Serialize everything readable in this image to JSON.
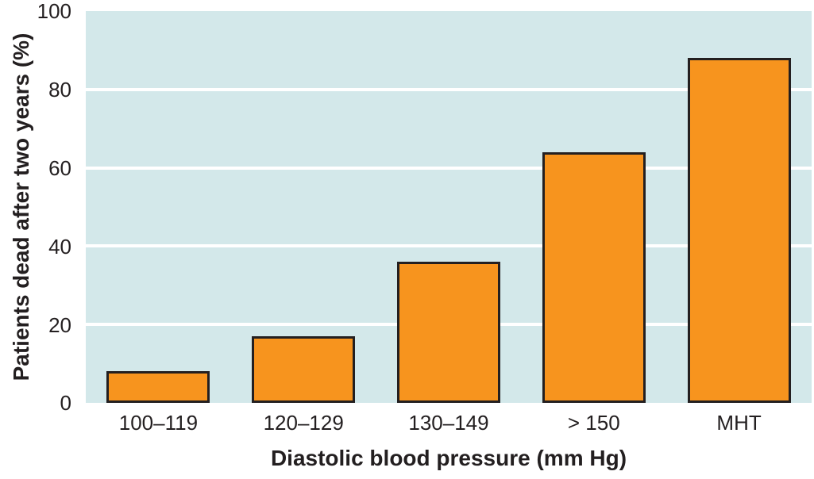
{
  "chart_data": {
    "type": "bar",
    "title": "",
    "xlabel": "Diastolic blood pressure (mm Hg)",
    "ylabel": "Patients dead after two years (%)",
    "categories": [
      "100–119",
      "120–129",
      "130–149",
      "> 150",
      "MHT"
    ],
    "values": [
      8,
      17,
      36,
      64,
      88
    ],
    "ylim": [
      0,
      100
    ],
    "yticks": [
      0,
      20,
      40,
      60,
      80,
      100
    ],
    "ytick_labels": [
      "0",
      "20",
      "40",
      "60",
      "80",
      "100"
    ],
    "gridlines": {
      "orientation": "horizontal",
      "at": [
        20,
        40,
        60,
        80
      ],
      "color": "#FFFFFF"
    },
    "legend_position": "none",
    "colors": {
      "bar_fill": "#F7941E",
      "bar_border": "#231F20",
      "plot_background": "#D3E8EA",
      "page_background": "#FFFFFF",
      "text": "#231F20"
    }
  }
}
